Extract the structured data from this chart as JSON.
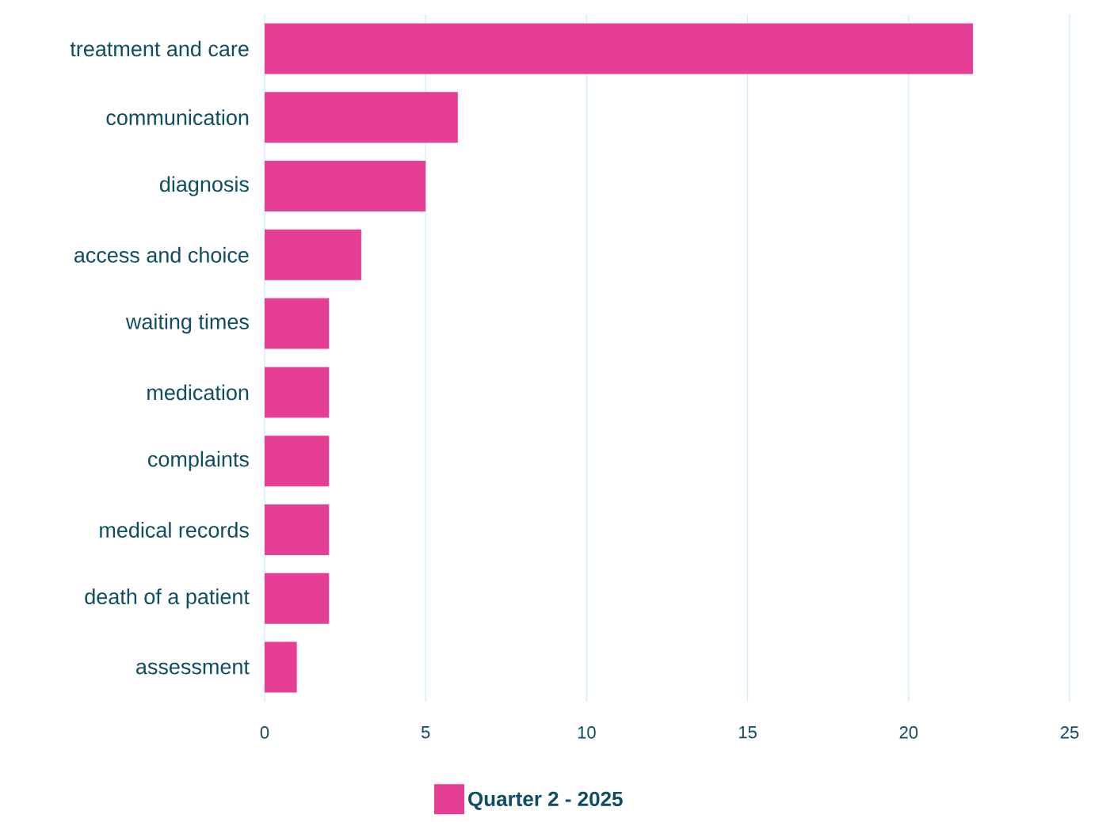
{
  "chart_data": {
    "type": "bar",
    "orientation": "horizontal",
    "categories": [
      "treatment and care",
      "communication",
      "diagnosis",
      "access and choice",
      "waiting times",
      "medication",
      "complaints",
      "medical records",
      "death of a patient",
      "assessment"
    ],
    "series": [
      {
        "name": "Quarter 2 - 2025",
        "color": "#e63e94",
        "values": [
          22,
          6,
          5,
          3,
          2,
          2,
          2,
          2,
          2,
          1
        ]
      }
    ],
    "xlim": [
      0,
      25
    ],
    "xticks": [
      0,
      5,
      10,
      15,
      20,
      25
    ],
    "grid": "x",
    "legend": "bottom"
  }
}
